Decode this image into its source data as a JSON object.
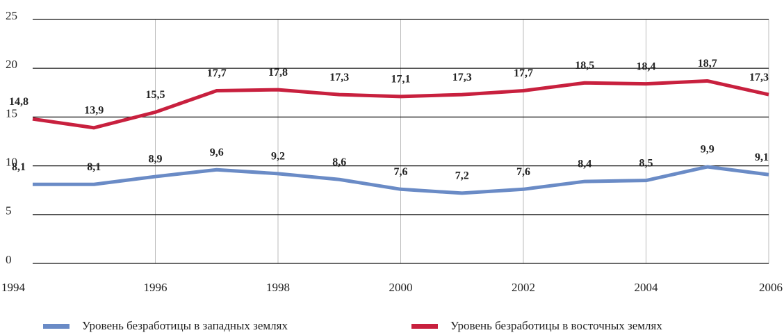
{
  "chart_data": {
    "type": "line",
    "x": [
      1994,
      1995,
      1996,
      1997,
      1998,
      1999,
      2000,
      2001,
      2002,
      2003,
      2004,
      2005,
      2006
    ],
    "xlim": [
      1994,
      2006
    ],
    "xticks": [
      1994,
      1996,
      1998,
      2000,
      2002,
      2004,
      2006
    ],
    "ylim": [
      0,
      25
    ],
    "yticks": [
      0,
      5,
      10,
      15,
      20,
      25
    ],
    "grid": true,
    "legend": "bottom",
    "series": [
      {
        "name": "Уровень безработицы в западных землях",
        "color": "#6a8bc6",
        "values": [
          8.1,
          8.1,
          8.9,
          9.6,
          9.2,
          8.6,
          7.6,
          7.2,
          7.6,
          8.4,
          8.5,
          9.9,
          9.1
        ],
        "value_labels": [
          "8,1",
          "8,1",
          "8,9",
          "9,6",
          "9,2",
          "8,6",
          "7,6",
          "7,2",
          "7,6",
          "8,4",
          "8,5",
          "9,9",
          "9,1"
        ]
      },
      {
        "name": "Уровень безработицы в восточных землях",
        "color": "#c8203e",
        "values": [
          14.8,
          13.9,
          15.5,
          17.7,
          17.8,
          17.3,
          17.1,
          17.3,
          17.7,
          18.5,
          18.4,
          18.7,
          17.3
        ],
        "value_labels": [
          "14,8",
          "13,9",
          "15,5",
          "17,7",
          "17,8",
          "17,3",
          "17,1",
          "17,3",
          "17,7",
          "18,5",
          "18,4",
          "18,7",
          "17,3"
        ]
      }
    ]
  }
}
